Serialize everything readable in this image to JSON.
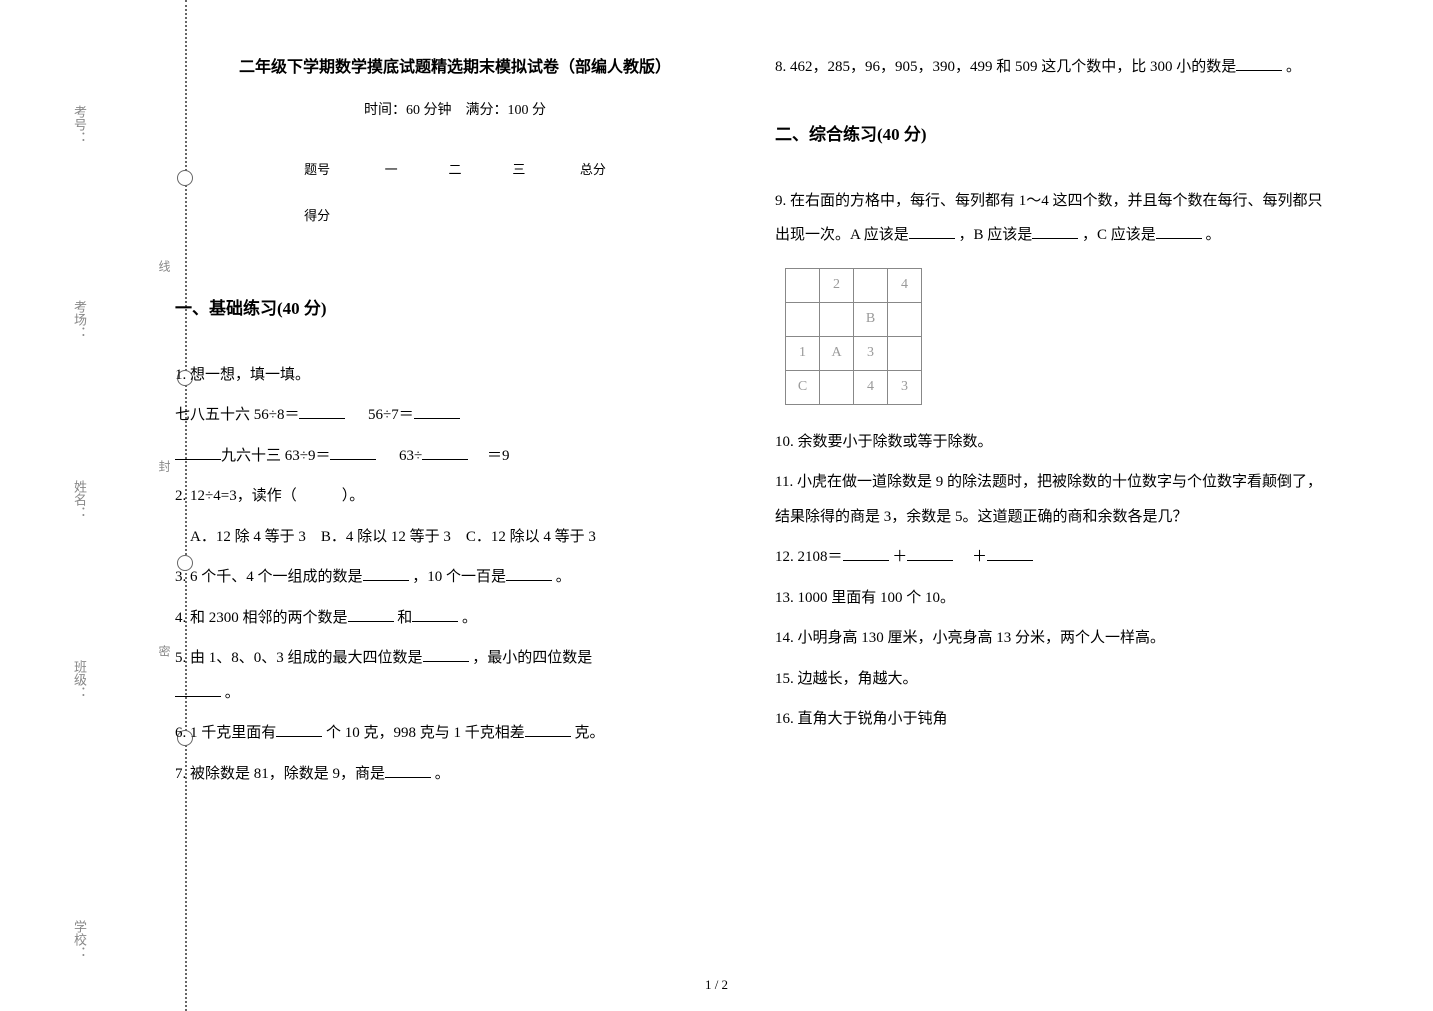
{
  "binding": {
    "labels": [
      "考号：",
      "考场：",
      "姓名：",
      "班级：",
      "学校："
    ],
    "hints": [
      "线",
      "封",
      "密"
    ]
  },
  "header": {
    "title": "二年级下学期数学摸底试题精选期末模拟试卷（部编人教版）",
    "subtitle": "时间：60 分钟　满分：100 分",
    "table_headers": [
      "题号",
      "一",
      "二",
      "三",
      "总分"
    ],
    "row_label": "得分"
  },
  "section1": {
    "heading": "一、基础练习(40 分)",
    "q1_lead": "1. 想一想，填一填。",
    "q1_l1a": "七八五十六  56÷8＝",
    "q1_l1b": "　  56÷7＝",
    "q1_l2a": "九六十三  63÷9＝",
    "q1_l2b": "　  63÷",
    "q1_l2c": "　＝9",
    "q2": "2. 12÷4=3，读作（　　　）。",
    "q2_opts": "　A．12 除 4 等于 3　B．4 除以 12 等于 3　C．12 除以 4 等于 3",
    "q3a": "3. 6 个千、4 个一组成的数是",
    "q3b": "，10 个一百是",
    "q3c": "。",
    "q4a": "4. 和 2300 相邻的两个数是",
    "q4b": "和",
    "q4c": "。",
    "q5a": "5. 由 1、8、0、3 组成的最大四位数是",
    "q5b": "，最小的四位数是",
    "q5c": "。",
    "q6a": "6. 1 千克里面有",
    "q6b": "个 10 克，998 克与 1 千克相差",
    "q6c": "克。",
    "q7a": "7. 被除数是 81，除数是 9，商是",
    "q7b": "。"
  },
  "section1r": {
    "q8a": "8. 462，285，96，905，390，499 和 509 这几个数中，比 300 小的数是",
    "q8b": "。"
  },
  "section2": {
    "heading": "二、综合练习(40 分)",
    "q9a": "9. 在右面的方格中，每行、每列都有 1～4 这四个数，并且每个数在每行、每列都只出现一次。A 应该是",
    "q9b": "，B 应该是",
    "q9c": "，C 应该是",
    "q9d": "。",
    "grid": [
      [
        "",
        "2",
        "",
        "4"
      ],
      [
        "",
        "",
        "B",
        ""
      ],
      [
        "1",
        "A",
        "3",
        ""
      ],
      [
        "C",
        "",
        "4",
        "3"
      ]
    ],
    "q10": "10. 余数要小于除数或等于除数。",
    "q11": "11. 小虎在做一道除数是 9 的除法题时，把被除数的十位数字与个位数字看颠倒了，结果除得的商是 3，余数是 5。这道题正确的商和余数各是几？",
    "q12a": "12. 2108＝",
    "q12b": "＋",
    "q12c": "　＋",
    "q13": "13. 1000 里面有 100 个 10。",
    "q14": "14. 小明身高 130 厘米，小亮身高 13 分米，两个人一样高。",
    "q15": "15. 边越长，角越大。",
    "q16": "16. 直角大于锐角小于钝角"
  },
  "pager": "1 / 2",
  "layout": {
    "label_tops": [
      105,
      300,
      480,
      660,
      920
    ],
    "circle_tops": [
      170,
      370,
      555,
      730
    ],
    "hint_tops": [
      260,
      460,
      645
    ]
  }
}
